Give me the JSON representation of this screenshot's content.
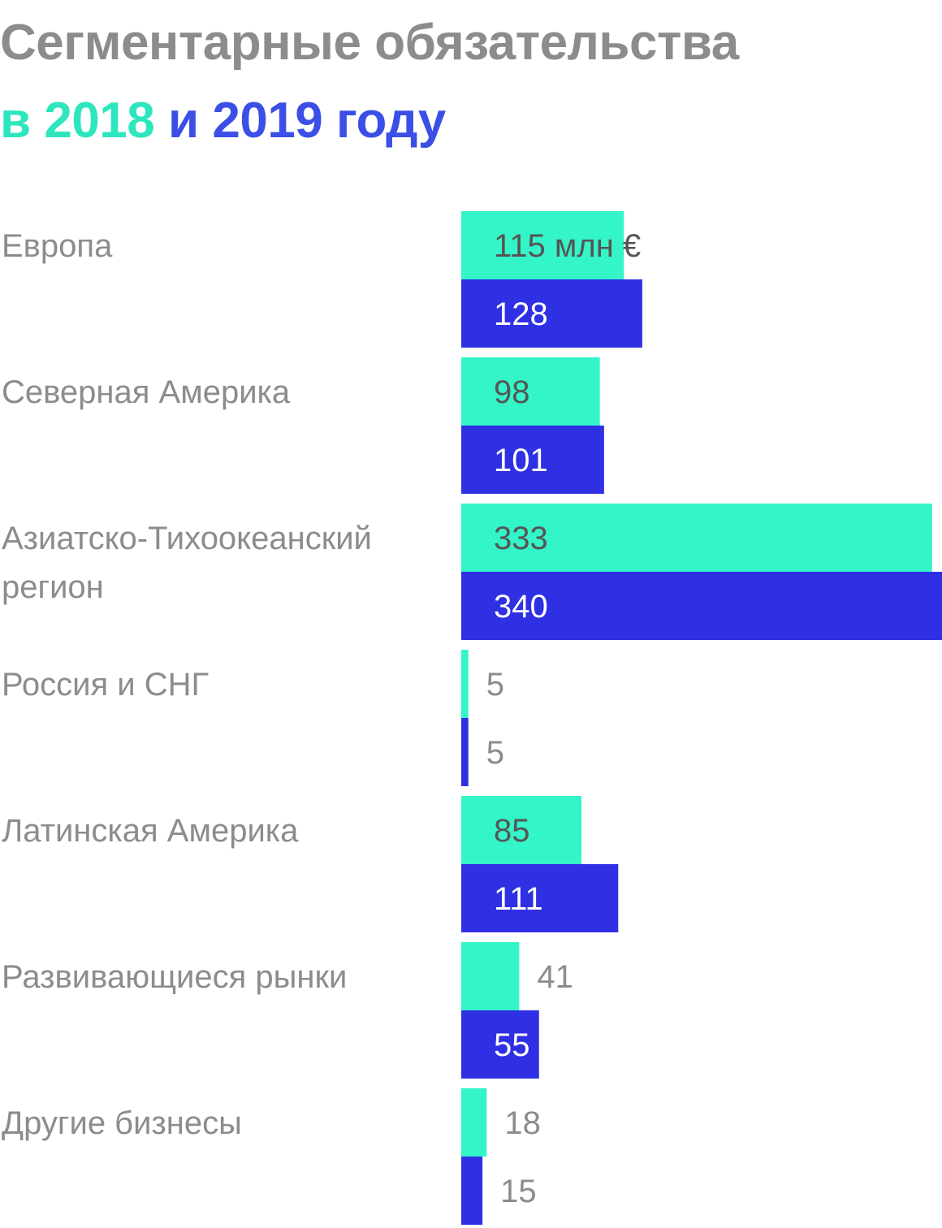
{
  "title": {
    "line1": "Сегментарные обязательства",
    "prefix": "в ",
    "year_a": "2018",
    "joiner": " и ",
    "year_b": "2019",
    "suffix": " году"
  },
  "colors": {
    "series_2018": "#33f5c8",
    "series_2019": "#2f2fe4",
    "title_gray": "#8c8c8c",
    "label_gray": "#8c8c8c",
    "value_dark": "#555555",
    "value_light": "#ffffff"
  },
  "chart_data": {
    "type": "bar",
    "orientation": "horizontal",
    "title": "Сегментарные обязательства в 2018 и 2019 году",
    "unit": "млн €",
    "categories": [
      [
        "Европа"
      ],
      [
        "Северная Америка"
      ],
      [
        "Азиатско-Тихоокеанский",
        "регион"
      ],
      [
        "Россия и СНГ"
      ],
      [
        "Латинская Америка"
      ],
      [
        "Развивающиеся рынки"
      ],
      [
        "Другие бизнесы"
      ]
    ],
    "series": [
      {
        "name": "2018",
        "values": [
          115,
          98,
          333,
          5,
          85,
          41,
          18
        ],
        "labels": [
          "115 млн €",
          "98",
          "333",
          "5",
          "85",
          "41",
          "18"
        ]
      },
      {
        "name": "2019",
        "values": [
          128,
          101,
          340,
          5,
          111,
          55,
          15
        ],
        "labels": [
          "128",
          "101",
          "340",
          "5",
          "111",
          "55",
          "15"
        ]
      }
    ],
    "xlim": [
      0,
      340
    ],
    "grid": false,
    "legend": "none"
  }
}
